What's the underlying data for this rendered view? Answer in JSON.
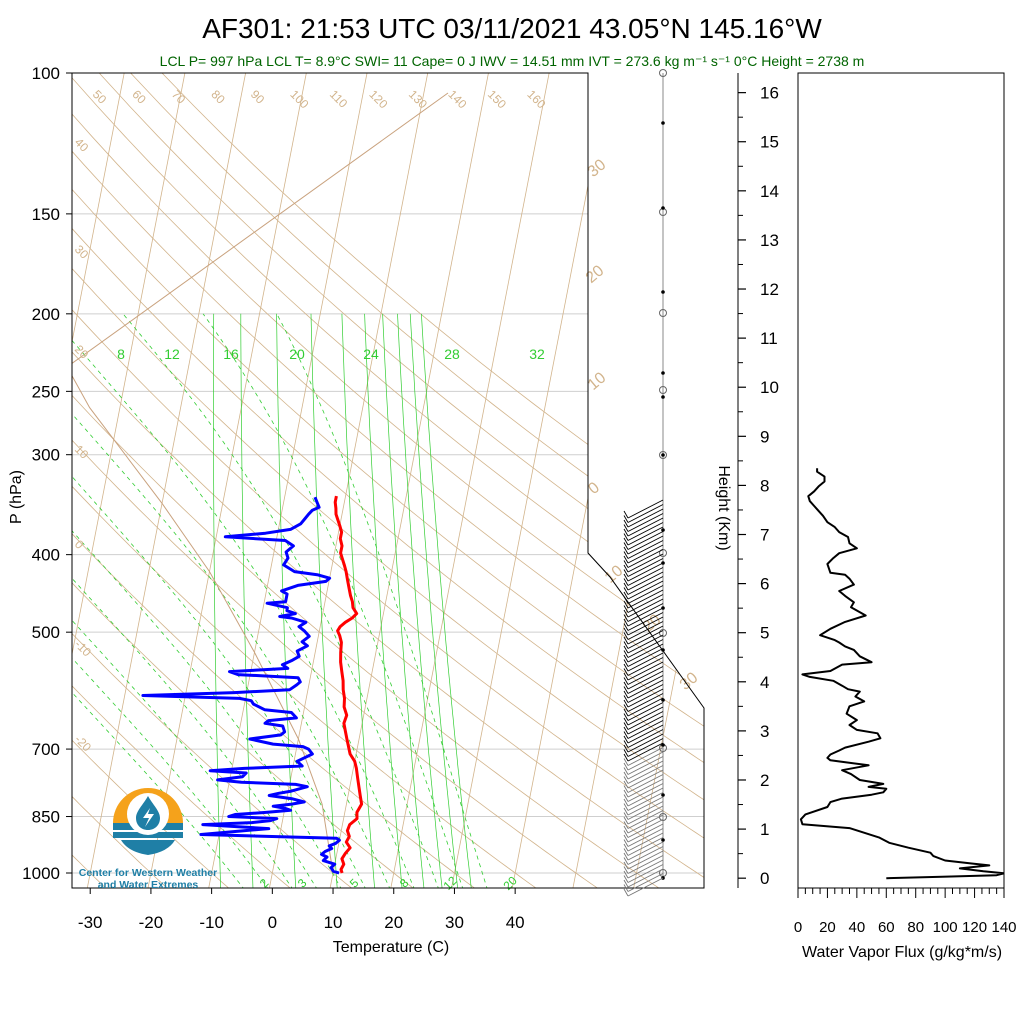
{
  "title": "AF301: 21:53 UTC 03/11/2021  43.05°N 145.16°W",
  "subtitle": "LCL P= 997 hPa  LCL T= 8.9°C  SWI= 11  Cape= 0 J  IWV = 14.51 mm  IVT = 273.6 kg m⁻¹ s⁻¹  0°C Height = 2738 m",
  "logo_text": [
    "Center for Western Weather",
    "and Water Extremes"
  ],
  "colors": {
    "temperature": "#ff0000",
    "dewpoint": "#0000ff",
    "adiabats": "#d2b48c",
    "mixing_ratio": "#32cd32",
    "subtitle": "#006400",
    "flux": "#000000",
    "logo_orange": "#f5a21b",
    "logo_blue": "#1f7fa6"
  },
  "chart_data": [
    {
      "type": "line",
      "name": "skew-t",
      "xlabel": "Temperature (C)",
      "ylabel": "P (hPa)",
      "x_ticks": [
        -30,
        -20,
        -10,
        0,
        10,
        20,
        30,
        40
      ],
      "y_ticks": [
        100,
        150,
        200,
        250,
        300,
        400,
        500,
        700,
        850,
        1000
      ],
      "pressure_range": [
        100,
        1000
      ],
      "temperature_at_1000": [
        -33,
        52
      ],
      "skew_deg_c_per_log_decade": 25.6,
      "grid": true,
      "dry_adiabat_labels": [
        50,
        60,
        70,
        80,
        90,
        100,
        110,
        120,
        130,
        140,
        150,
        160,
        40,
        30,
        20,
        10,
        0,
        -10,
        -20
      ],
      "moist_adiabat_labels": [
        30,
        20,
        10,
        0,
        10,
        20,
        30
      ],
      "mixing_ratio_labels_top": [
        8,
        12,
        16,
        20,
        24,
        28,
        32
      ],
      "mixing_ratio_labels_bottom": [
        2,
        3,
        5,
        8,
        12,
        20
      ],
      "series": [
        {
          "name": "Temperature",
          "points": [
            [
              11.5,
              1000
            ],
            [
              11.2,
              990
            ],
            [
              11.5,
              975
            ],
            [
              11.0,
              960
            ],
            [
              11.4,
              945
            ],
            [
              12.0,
              930
            ],
            [
              11.2,
              915
            ],
            [
              11.5,
              900
            ],
            [
              11.0,
              885
            ],
            [
              11.2,
              870
            ],
            [
              12.2,
              855
            ],
            [
              12.0,
              840
            ],
            [
              12.5,
              820
            ],
            [
              12.0,
              800
            ],
            [
              11.5,
              780
            ],
            [
              11.0,
              760
            ],
            [
              10.5,
              740
            ],
            [
              10.0,
              725
            ],
            [
              9.0,
              710
            ],
            [
              8.5,
              695
            ],
            [
              8.0,
              680
            ],
            [
              7.5,
              665
            ],
            [
              7.0,
              650
            ],
            [
              7.2,
              635
            ],
            [
              6.5,
              620
            ],
            [
              6.3,
              605
            ],
            [
              5.8,
              590
            ],
            [
              5.5,
              575
            ],
            [
              5.0,
              560
            ],
            [
              4.5,
              545
            ],
            [
              4.2,
              530
            ],
            [
              4.0,
              515
            ],
            [
              3.5,
              505
            ],
            [
              3.0,
              498
            ],
            [
              3.3,
              492
            ],
            [
              4.0,
              486
            ],
            [
              5.0,
              480
            ],
            [
              5.6,
              474
            ],
            [
              4.8,
              466
            ],
            [
              4.5,
              458
            ],
            [
              4.0,
              450
            ],
            [
              3.5,
              440
            ],
            [
              3.0,
              430
            ],
            [
              2.5,
              420
            ],
            [
              2.0,
              412
            ],
            [
              1.5,
              405
            ],
            [
              1.0,
              398
            ],
            [
              1.0,
              390
            ],
            [
              0.5,
              382
            ],
            [
              0.5,
              375
            ],
            [
              0.0,
              368
            ],
            [
              -0.5,
              362
            ],
            [
              -1.0,
              356
            ],
            [
              -1.2,
              350
            ],
            [
              -1.5,
              344
            ],
            [
              -1.5,
              338
            ]
          ]
        },
        {
          "name": "Dewpoint",
          "points": [
            [
              11.0,
              1000
            ],
            [
              10.0,
              995
            ],
            [
              9.5,
              985
            ],
            [
              10.0,
              975
            ],
            [
              8.0,
              965
            ],
            [
              8.5,
              955
            ],
            [
              7.5,
              948
            ],
            [
              8.0,
              940
            ],
            [
              9.0,
              932
            ],
            [
              8.5,
              925
            ],
            [
              9.5,
              918
            ],
            [
              10.0,
              910
            ],
            [
              9.5,
              905
            ],
            [
              -2.0,
              900
            ],
            [
              -13.0,
              895
            ],
            [
              -2.0,
              880
            ],
            [
              -13.0,
              870
            ],
            [
              -5.0,
              865
            ],
            [
              -2.0,
              860
            ],
            [
              -1.0,
              855
            ],
            [
              -9.0,
              850
            ],
            [
              -8.0,
              845
            ],
            [
              -3.0,
              840
            ],
            [
              1.0,
              835
            ],
            [
              0.0,
              830
            ],
            [
              -2.0,
              825
            ],
            [
              1.0,
              820
            ],
            [
              3.0,
              815
            ],
            [
              1.0,
              808
            ],
            [
              -3.0,
              800
            ],
            [
              -1.5,
              795
            ],
            [
              0.5,
              790
            ],
            [
              3.0,
              780
            ],
            [
              1.0,
              775
            ],
            [
              -8.0,
              770
            ],
            [
              -12.0,
              765
            ],
            [
              -8.0,
              758
            ],
            [
              -7.5,
              750
            ],
            [
              -13.5,
              745
            ],
            [
              -8.0,
              740
            ],
            [
              1.5,
              735
            ],
            [
              0.5,
              725
            ],
            [
              2.8,
              710
            ],
            [
              2.0,
              700
            ],
            [
              1.0,
              695
            ],
            [
              -4.0,
              690
            ],
            [
              -8.0,
              680
            ],
            [
              -3.0,
              672
            ],
            [
              -2.5,
              666
            ],
            [
              -3.0,
              655
            ],
            [
              -6.0,
              650
            ],
            [
              -5.5,
              645
            ],
            [
              -1.0,
              640
            ],
            [
              -2.0,
              630
            ],
            [
              -6.5,
              625
            ],
            [
              -8.5,
              615
            ],
            [
              -9.0,
              609
            ],
            [
              -11.0,
              605
            ],
            [
              -27.0,
              600
            ],
            [
              -12.0,
              595
            ],
            [
              -3.0,
              590
            ],
            [
              -2.0,
              582
            ],
            [
              -1.5,
              577
            ],
            [
              -2.0,
              570
            ],
            [
              -12.0,
              565
            ],
            [
              -13.5,
              560
            ],
            [
              -4.0,
              555
            ],
            [
              -5.0,
              549
            ],
            [
              -3.5,
              542
            ],
            [
              -2.5,
              536
            ],
            [
              -3.0,
              528
            ],
            [
              -1.5,
              520
            ],
            [
              -2.5,
              514
            ],
            [
              -1.5,
              506
            ],
            [
              -2.5,
              498
            ],
            [
              -3.5,
              492
            ],
            [
              -2.5,
              486
            ],
            [
              -5.0,
              480
            ],
            [
              -7.0,
              478
            ],
            [
              -4.5,
              474
            ],
            [
              -6.0,
              470
            ],
            [
              -6.0,
              466
            ],
            [
              -9.5,
              460
            ],
            [
              -6.5,
              458
            ],
            [
              -6.5,
              448
            ],
            [
              -7.5,
              444
            ],
            [
              -5.0,
              437
            ],
            [
              -0.5,
              432
            ],
            [
              0.0,
              428
            ],
            [
              -2.0,
              424
            ],
            [
              -6.0,
              420
            ],
            [
              -8.0,
              412
            ],
            [
              -7.5,
              404
            ],
            [
              -8.0,
              397
            ],
            [
              -7.0,
              390
            ],
            [
              -8.5,
              384
            ],
            [
              -18.5,
              380
            ],
            [
              -12.0,
              376
            ],
            [
              -8.0,
              372
            ],
            [
              -6.5,
              366
            ],
            [
              -6.0,
              361
            ],
            [
              -5.5,
              356
            ],
            [
              -5.0,
              352
            ],
            [
              -4.0,
              349
            ],
            [
              -4.5,
              344
            ],
            [
              -5.0,
              339
            ]
          ]
        }
      ]
    },
    {
      "type": "line",
      "name": "water-vapor-flux",
      "xlabel": "Water Vapor Flux (g/kg*m/s)",
      "ylabel": "Height (Km)",
      "xlim": [
        0,
        140
      ],
      "ylim": [
        -0.2,
        16.4
      ],
      "x_ticks": [
        0,
        20,
        40,
        60,
        80,
        100,
        120,
        140
      ],
      "y_ticks": [
        0,
        1,
        2,
        3,
        4,
        5,
        6,
        7,
        8,
        9,
        10,
        11,
        12,
        13,
        14,
        15,
        16
      ],
      "series": [
        {
          "name": "Flux",
          "points": [
            [
              60,
              0
            ],
            [
              98,
              0.03
            ],
            [
              135,
              0.06
            ],
            [
              140,
              0.1
            ],
            [
              126,
              0.14
            ],
            [
              110,
              0.2
            ],
            [
              130,
              0.26
            ],
            [
              118,
              0.3
            ],
            [
              100,
              0.36
            ],
            [
              92,
              0.45
            ],
            [
              90,
              0.52
            ],
            [
              75,
              0.62
            ],
            [
              62,
              0.72
            ],
            [
              55,
              0.83
            ],
            [
              35,
              1.02
            ],
            [
              3,
              1.1
            ],
            [
              2,
              1.2
            ],
            [
              5,
              1.3
            ],
            [
              20,
              1.45
            ],
            [
              22,
              1.55
            ],
            [
              30,
              1.62
            ],
            [
              50,
              1.7
            ],
            [
              58,
              1.75
            ],
            [
              60,
              1.82
            ],
            [
              48,
              1.86
            ],
            [
              58,
              1.92
            ],
            [
              42,
              2.0
            ],
            [
              36,
              2.12
            ],
            [
              30,
              2.2
            ],
            [
              48,
              2.3
            ],
            [
              22,
              2.4
            ],
            [
              20,
              2.45
            ],
            [
              22,
              2.52
            ],
            [
              28,
              2.6
            ],
            [
              32,
              2.66
            ],
            [
              48,
              2.78
            ],
            [
              56,
              2.85
            ],
            [
              54,
              2.95
            ],
            [
              40,
              3.02
            ],
            [
              35,
              3.12
            ],
            [
              40,
              3.22
            ],
            [
              33,
              3.35
            ],
            [
              35,
              3.5
            ],
            [
              45,
              3.6
            ],
            [
              39,
              3.7
            ],
            [
              42,
              3.8
            ],
            [
              34,
              3.85
            ],
            [
              30,
              3.92
            ],
            [
              24,
              4.02
            ],
            [
              8,
              4.1
            ],
            [
              3,
              4.15
            ],
            [
              22,
              4.22
            ],
            [
              30,
              4.35
            ],
            [
              50,
              4.4
            ],
            [
              42,
              4.52
            ],
            [
              38,
              4.65
            ],
            [
              32,
              4.72
            ],
            [
              28,
              4.8
            ],
            [
              25,
              4.85
            ],
            [
              15,
              4.95
            ],
            [
              22,
              5.08
            ],
            [
              32,
              5.22
            ],
            [
              46,
              5.35
            ],
            [
              36,
              5.52
            ],
            [
              38,
              5.62
            ],
            [
              32,
              5.75
            ],
            [
              28,
              5.85
            ],
            [
              38,
              5.98
            ],
            [
              35,
              6.1
            ],
            [
              32,
              6.18
            ],
            [
              22,
              6.22
            ],
            [
              20,
              6.4
            ],
            [
              24,
              6.52
            ],
            [
              28,
              6.62
            ],
            [
              40,
              6.72
            ],
            [
              35,
              6.82
            ],
            [
              34,
              6.95
            ],
            [
              28,
              7.05
            ],
            [
              25,
              7.15
            ],
            [
              20,
              7.25
            ],
            [
              17,
              7.38
            ],
            [
              14,
              7.48
            ],
            [
              11,
              7.58
            ],
            [
              8,
              7.68
            ],
            [
              7,
              7.78
            ],
            [
              11,
              7.88
            ],
            [
              14,
              7.98
            ],
            [
              18,
              8.08
            ],
            [
              18,
              8.18
            ],
            [
              13,
              8.28
            ],
            [
              13,
              8.35
            ]
          ]
        }
      ]
    }
  ]
}
